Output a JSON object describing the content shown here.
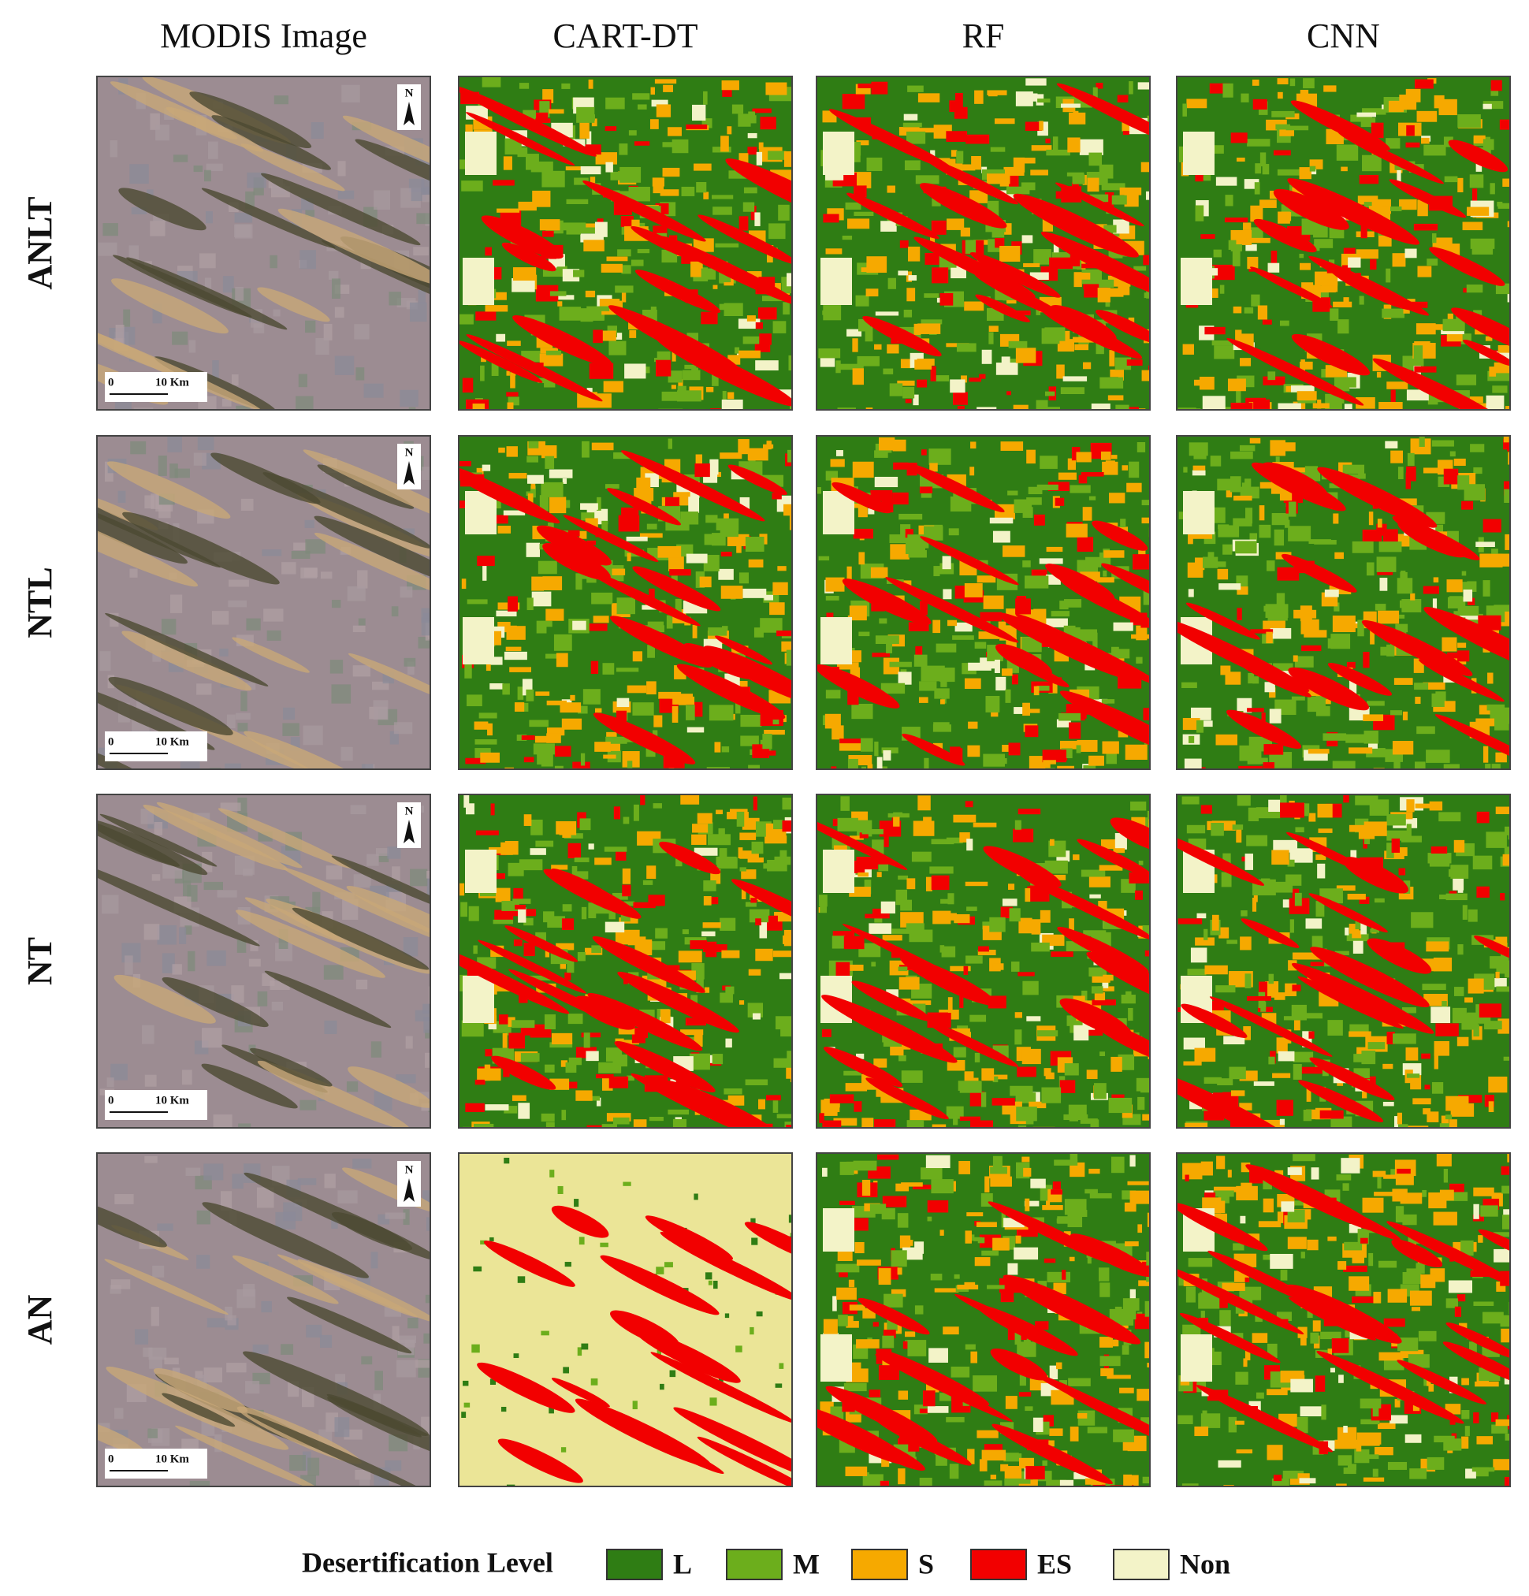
{
  "columns": [
    "MODIS Image",
    "CART-DT",
    "RF",
    "CNN"
  ],
  "rows": [
    "ANLT",
    "NTL",
    "NT",
    "AN"
  ],
  "scale_bar": {
    "start": "0",
    "end": "10 Km"
  },
  "north_arrow": "N",
  "legend": {
    "title": "Desertification Level",
    "items": [
      {
        "label": "L",
        "color": "#2f7d14"
      },
      {
        "label": "M",
        "color": "#6cae1c"
      },
      {
        "label": "S",
        "color": "#f6a900"
      },
      {
        "label": "ES",
        "color": "#f20000"
      },
      {
        "label": "Non",
        "color": "#f3f3c8"
      }
    ]
  }
}
